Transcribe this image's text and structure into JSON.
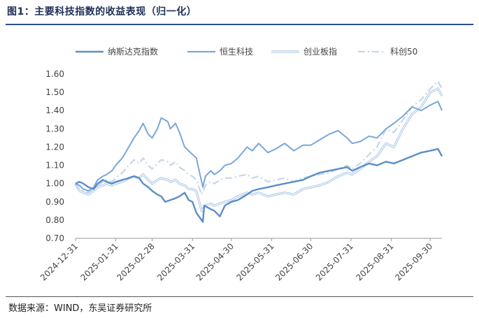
{
  "header": {
    "title": "图1：主要科技指数的收益表现（归一化）"
  },
  "footer": {
    "source": "数据来源：WIND，东吴证券研究所"
  },
  "chart_data": {
    "type": "line",
    "title": "图1：主要科技指数的收益表现（归一化）",
    "xlabel": "",
    "ylabel": "",
    "ylim": [
      0.7,
      1.6
    ],
    "yticks": [
      "0.70",
      "0.80",
      "0.90",
      "1.00",
      "1.10",
      "1.20",
      "1.30",
      "1.40",
      "1.50",
      "1.60"
    ],
    "xticks": [
      "2024-12-31",
      "2025-01-31",
      "2025-02-28",
      "2025-03-31",
      "2025-04-30",
      "2025-05-31",
      "2025-06-30",
      "2025-07-31",
      "2025-08-31",
      "2025-09-30"
    ],
    "xlim": [
      "2024-12-31",
      "2025-10-09"
    ],
    "grid": false,
    "legend_position": "top",
    "series": [
      {
        "name": "纳斯达克指数",
        "style": "solid-thick",
        "color": "#5b8ec7",
        "points": [
          [
            "2024-12-31",
            1.0
          ],
          [
            "2025-01-03",
            1.01
          ],
          [
            "2025-01-06",
            1.0
          ],
          [
            "2025-01-10",
            0.98
          ],
          [
            "2025-01-14",
            0.97
          ],
          [
            "2025-01-17",
            1.0
          ],
          [
            "2025-01-21",
            1.02
          ],
          [
            "2025-01-24",
            1.01
          ],
          [
            "2025-01-28",
            1.0
          ],
          [
            "2025-01-31",
            1.01
          ],
          [
            "2025-02-05",
            1.02
          ],
          [
            "2025-02-10",
            1.03
          ],
          [
            "2025-02-14",
            1.04
          ],
          [
            "2025-02-18",
            1.03
          ],
          [
            "2025-02-21",
            1.0
          ],
          [
            "2025-02-25",
            0.98
          ],
          [
            "2025-02-28",
            0.96
          ],
          [
            "2025-03-04",
            0.94
          ],
          [
            "2025-03-07",
            0.93
          ],
          [
            "2025-03-10",
            0.9
          ],
          [
            "2025-03-14",
            0.91
          ],
          [
            "2025-03-18",
            0.92
          ],
          [
            "2025-03-21",
            0.93
          ],
          [
            "2025-03-25",
            0.95
          ],
          [
            "2025-03-28",
            0.91
          ],
          [
            "2025-03-31",
            0.9
          ],
          [
            "2025-04-03",
            0.84
          ],
          [
            "2025-04-08",
            0.79
          ],
          [
            "2025-04-09",
            0.88
          ],
          [
            "2025-04-14",
            0.86
          ],
          [
            "2025-04-17",
            0.85
          ],
          [
            "2025-04-21",
            0.82
          ],
          [
            "2025-04-25",
            0.88
          ],
          [
            "2025-04-30",
            0.9
          ],
          [
            "2025-05-05",
            0.91
          ],
          [
            "2025-05-12",
            0.94
          ],
          [
            "2025-05-16",
            0.96
          ],
          [
            "2025-05-21",
            0.97
          ],
          [
            "2025-05-28",
            0.98
          ],
          [
            "2025-06-03",
            0.99
          ],
          [
            "2025-06-10",
            1.0
          ],
          [
            "2025-06-17",
            1.01
          ],
          [
            "2025-06-24",
            1.02
          ],
          [
            "2025-06-30",
            1.04
          ],
          [
            "2025-07-07",
            1.06
          ],
          [
            "2025-07-14",
            1.07
          ],
          [
            "2025-07-21",
            1.08
          ],
          [
            "2025-07-28",
            1.09
          ],
          [
            "2025-08-01",
            1.07
          ],
          [
            "2025-08-07",
            1.09
          ],
          [
            "2025-08-14",
            1.11
          ],
          [
            "2025-08-20",
            1.1
          ],
          [
            "2025-08-27",
            1.12
          ],
          [
            "2025-09-02",
            1.11
          ],
          [
            "2025-09-09",
            1.13
          ],
          [
            "2025-09-16",
            1.15
          ],
          [
            "2025-09-23",
            1.17
          ],
          [
            "2025-09-30",
            1.18
          ],
          [
            "2025-10-06",
            1.19
          ],
          [
            "2025-10-09",
            1.15
          ]
        ]
      },
      {
        "name": "恒生科技",
        "style": "solid",
        "color": "#7aa6d9",
        "points": [
          [
            "2024-12-31",
            1.0
          ],
          [
            "2025-01-03",
            0.99
          ],
          [
            "2025-01-06",
            0.97
          ],
          [
            "2025-01-10",
            0.96
          ],
          [
            "2025-01-14",
            0.98
          ],
          [
            "2025-01-17",
            1.02
          ],
          [
            "2025-01-21",
            1.04
          ],
          [
            "2025-01-24",
            1.05
          ],
          [
            "2025-01-28",
            1.07
          ],
          [
            "2025-01-31",
            1.1
          ],
          [
            "2025-02-05",
            1.14
          ],
          [
            "2025-02-10",
            1.2
          ],
          [
            "2025-02-14",
            1.25
          ],
          [
            "2025-02-18",
            1.29
          ],
          [
            "2025-02-21",
            1.33
          ],
          [
            "2025-02-25",
            1.27
          ],
          [
            "2025-02-28",
            1.25
          ],
          [
            "2025-03-04",
            1.3
          ],
          [
            "2025-03-07",
            1.36
          ],
          [
            "2025-03-12",
            1.34
          ],
          [
            "2025-03-14",
            1.3
          ],
          [
            "2025-03-18",
            1.33
          ],
          [
            "2025-03-21",
            1.28
          ],
          [
            "2025-03-25",
            1.2
          ],
          [
            "2025-03-28",
            1.18
          ],
          [
            "2025-03-31",
            1.16
          ],
          [
            "2025-04-03",
            1.14
          ],
          [
            "2025-04-08",
            0.98
          ],
          [
            "2025-04-10",
            1.04
          ],
          [
            "2025-04-14",
            1.07
          ],
          [
            "2025-04-17",
            1.05
          ],
          [
            "2025-04-21",
            1.07
          ],
          [
            "2025-04-25",
            1.1
          ],
          [
            "2025-04-30",
            1.11
          ],
          [
            "2025-05-05",
            1.14
          ],
          [
            "2025-05-12",
            1.2
          ],
          [
            "2025-05-16",
            1.18
          ],
          [
            "2025-05-21",
            1.22
          ],
          [
            "2025-05-28",
            1.17
          ],
          [
            "2025-06-03",
            1.19
          ],
          [
            "2025-06-10",
            1.22
          ],
          [
            "2025-06-17",
            1.18
          ],
          [
            "2025-06-24",
            1.21
          ],
          [
            "2025-06-30",
            1.21
          ],
          [
            "2025-07-07",
            1.24
          ],
          [
            "2025-07-14",
            1.27
          ],
          [
            "2025-07-21",
            1.29
          ],
          [
            "2025-07-28",
            1.25
          ],
          [
            "2025-08-01",
            1.22
          ],
          [
            "2025-08-07",
            1.23
          ],
          [
            "2025-08-14",
            1.26
          ],
          [
            "2025-08-20",
            1.25
          ],
          [
            "2025-08-27",
            1.3
          ],
          [
            "2025-09-02",
            1.33
          ],
          [
            "2025-09-09",
            1.37
          ],
          [
            "2025-09-16",
            1.42
          ],
          [
            "2025-09-23",
            1.4
          ],
          [
            "2025-09-30",
            1.43
          ],
          [
            "2025-10-06",
            1.45
          ],
          [
            "2025-10-09",
            1.4
          ]
        ]
      },
      {
        "name": "创业板指",
        "style": "double",
        "color": "#a9c4e6",
        "points": [
          [
            "2024-12-31",
            1.0
          ],
          [
            "2025-01-03",
            0.96
          ],
          [
            "2025-01-06",
            0.95
          ],
          [
            "2025-01-10",
            0.94
          ],
          [
            "2025-01-14",
            0.96
          ],
          [
            "2025-01-17",
            0.98
          ],
          [
            "2025-01-21",
            0.99
          ],
          [
            "2025-01-24",
            1.0
          ],
          [
            "2025-01-28",
            0.99
          ],
          [
            "2025-01-31",
            1.0
          ],
          [
            "2025-02-05",
            1.01
          ],
          [
            "2025-02-10",
            1.03
          ],
          [
            "2025-02-14",
            1.04
          ],
          [
            "2025-02-18",
            1.03
          ],
          [
            "2025-02-21",
            1.05
          ],
          [
            "2025-02-25",
            1.02
          ],
          [
            "2025-02-28",
            1.0
          ],
          [
            "2025-03-04",
            1.02
          ],
          [
            "2025-03-07",
            1.03
          ],
          [
            "2025-03-12",
            1.02
          ],
          [
            "2025-03-14",
            1.01
          ],
          [
            "2025-03-18",
            1.02
          ],
          [
            "2025-03-21",
            1.0
          ],
          [
            "2025-03-25",
            0.99
          ],
          [
            "2025-03-28",
            0.97
          ],
          [
            "2025-03-31",
            0.97
          ],
          [
            "2025-04-03",
            0.96
          ],
          [
            "2025-04-07",
            0.85
          ],
          [
            "2025-04-10",
            0.88
          ],
          [
            "2025-04-14",
            0.89
          ],
          [
            "2025-04-17",
            0.88
          ],
          [
            "2025-04-21",
            0.89
          ],
          [
            "2025-04-25",
            0.9
          ],
          [
            "2025-04-30",
            0.91
          ],
          [
            "2025-05-05",
            0.93
          ],
          [
            "2025-05-12",
            0.95
          ],
          [
            "2025-05-16",
            0.94
          ],
          [
            "2025-05-21",
            0.95
          ],
          [
            "2025-05-28",
            0.93
          ],
          [
            "2025-06-03",
            0.94
          ],
          [
            "2025-06-10",
            0.95
          ],
          [
            "2025-06-17",
            0.94
          ],
          [
            "2025-06-24",
            0.97
          ],
          [
            "2025-06-30",
            0.98
          ],
          [
            "2025-07-07",
            0.99
          ],
          [
            "2025-07-14",
            1.01
          ],
          [
            "2025-07-21",
            1.04
          ],
          [
            "2025-07-28",
            1.06
          ],
          [
            "2025-08-01",
            1.05
          ],
          [
            "2025-08-07",
            1.08
          ],
          [
            "2025-08-14",
            1.12
          ],
          [
            "2025-08-20",
            1.15
          ],
          [
            "2025-08-27",
            1.22
          ],
          [
            "2025-09-02",
            1.2
          ],
          [
            "2025-09-09",
            1.3
          ],
          [
            "2025-09-16",
            1.38
          ],
          [
            "2025-09-23",
            1.42
          ],
          [
            "2025-09-30",
            1.5
          ],
          [
            "2025-10-06",
            1.52
          ],
          [
            "2025-10-09",
            1.48
          ]
        ]
      },
      {
        "name": "科创50",
        "style": "dash-dot",
        "color": "#c6d6ea",
        "points": [
          [
            "2024-12-31",
            1.0
          ],
          [
            "2025-01-03",
            0.97
          ],
          [
            "2025-01-06",
            0.96
          ],
          [
            "2025-01-10",
            0.95
          ],
          [
            "2025-01-14",
            0.97
          ],
          [
            "2025-01-17",
            0.99
          ],
          [
            "2025-01-21",
            1.01
          ],
          [
            "2025-01-24",
            1.02
          ],
          [
            "2025-01-28",
            1.01
          ],
          [
            "2025-01-31",
            1.03
          ],
          [
            "2025-02-05",
            1.06
          ],
          [
            "2025-02-10",
            1.1
          ],
          [
            "2025-02-14",
            1.13
          ],
          [
            "2025-02-18",
            1.11
          ],
          [
            "2025-02-21",
            1.14
          ],
          [
            "2025-02-25",
            1.1
          ],
          [
            "2025-02-28",
            1.08
          ],
          [
            "2025-03-04",
            1.11
          ],
          [
            "2025-03-07",
            1.13
          ],
          [
            "2025-03-12",
            1.12
          ],
          [
            "2025-03-14",
            1.1
          ],
          [
            "2025-03-18",
            1.12
          ],
          [
            "2025-03-21",
            1.09
          ],
          [
            "2025-03-25",
            1.07
          ],
          [
            "2025-03-28",
            1.05
          ],
          [
            "2025-03-31",
            1.04
          ],
          [
            "2025-04-03",
            1.02
          ],
          [
            "2025-04-07",
            0.94
          ],
          [
            "2025-04-10",
            0.99
          ],
          [
            "2025-04-14",
            1.01
          ],
          [
            "2025-04-17",
            1.0
          ],
          [
            "2025-04-21",
            1.02
          ],
          [
            "2025-04-25",
            1.03
          ],
          [
            "2025-04-30",
            1.03
          ],
          [
            "2025-05-05",
            1.04
          ],
          [
            "2025-05-12",
            1.05
          ],
          [
            "2025-05-16",
            1.03
          ],
          [
            "2025-05-21",
            1.04
          ],
          [
            "2025-05-28",
            1.01
          ],
          [
            "2025-06-03",
            1.02
          ],
          [
            "2025-06-10",
            1.03
          ],
          [
            "2025-06-17",
            1.01
          ],
          [
            "2025-06-24",
            1.03
          ],
          [
            "2025-06-30",
            1.04
          ],
          [
            "2025-07-07",
            1.05
          ],
          [
            "2025-07-14",
            1.06
          ],
          [
            "2025-07-21",
            1.08
          ],
          [
            "2025-07-28",
            1.1
          ],
          [
            "2025-08-01",
            1.08
          ],
          [
            "2025-08-07",
            1.11
          ],
          [
            "2025-08-14",
            1.16
          ],
          [
            "2025-08-20",
            1.2
          ],
          [
            "2025-08-27",
            1.3
          ],
          [
            "2025-09-02",
            1.28
          ],
          [
            "2025-09-09",
            1.35
          ],
          [
            "2025-09-16",
            1.42
          ],
          [
            "2025-09-23",
            1.46
          ],
          [
            "2025-09-30",
            1.52
          ],
          [
            "2025-10-06",
            1.56
          ],
          [
            "2025-10-09",
            1.52
          ]
        ]
      }
    ]
  }
}
